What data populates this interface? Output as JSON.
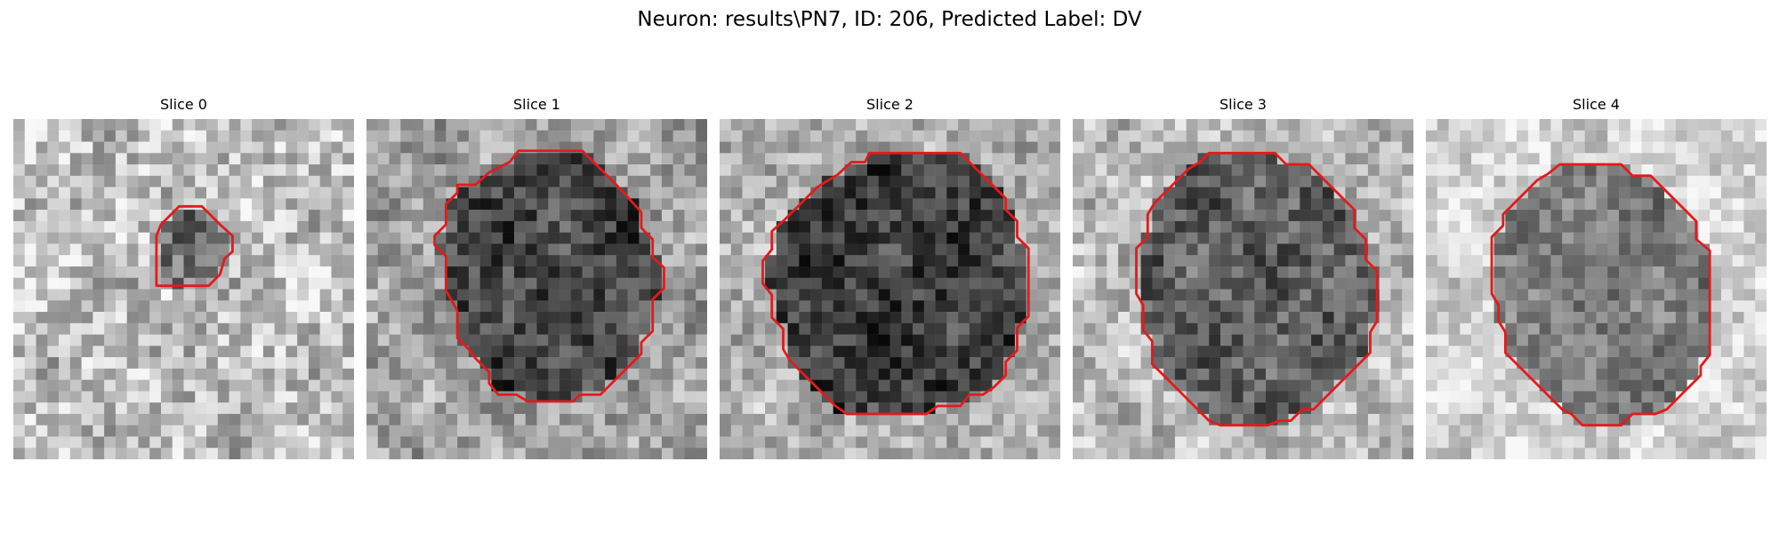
{
  "figure": {
    "title": "Neuron: results\\PN7, ID: 206, Predicted Label: DV"
  },
  "panels": [
    {
      "label": "Slice 0",
      "contour": "red-contour",
      "texture": "grayscale-em-patch"
    },
    {
      "label": "Slice 1",
      "contour": "red-contour",
      "texture": "grayscale-em-patch"
    },
    {
      "label": "Slice 2",
      "contour": "red-contour",
      "texture": "grayscale-em-patch"
    },
    {
      "label": "Slice 3",
      "contour": "red-contour",
      "texture": "grayscale-em-patch"
    },
    {
      "label": "Slice 4",
      "contour": "red-contour",
      "texture": "grayscale-em-patch"
    }
  ],
  "colors": {
    "contour": "#e41a1c",
    "background": "#ffffff"
  }
}
